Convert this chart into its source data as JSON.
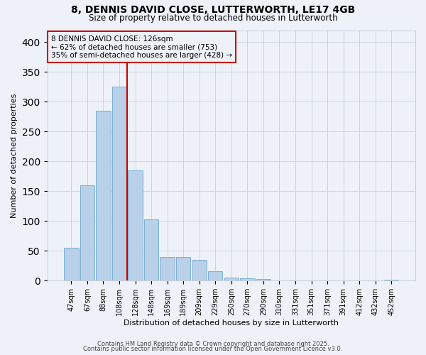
{
  "title1": "8, DENNIS DAVID CLOSE, LUTTERWORTH, LE17 4GB",
  "title2": "Size of property relative to detached houses in Lutterworth",
  "xlabel": "Distribution of detached houses by size in Lutterworth",
  "ylabel": "Number of detached properties",
  "bar_labels": [
    "47sqm",
    "67sqm",
    "88sqm",
    "108sqm",
    "128sqm",
    "148sqm",
    "169sqm",
    "189sqm",
    "209sqm",
    "229sqm",
    "250sqm",
    "270sqm",
    "290sqm",
    "310sqm",
    "331sqm",
    "351sqm",
    "371sqm",
    "391sqm",
    "412sqm",
    "432sqm",
    "452sqm"
  ],
  "bar_values": [
    55,
    160,
    285,
    325,
    185,
    103,
    40,
    40,
    35,
    16,
    5,
    4,
    3,
    0,
    0,
    0,
    0,
    0,
    0,
    0,
    2
  ],
  "bar_color": "#b8d0e8",
  "bar_edgecolor": "#7ab0d4",
  "ylim": [
    0,
    420
  ],
  "yticks": [
    0,
    50,
    100,
    150,
    200,
    250,
    300,
    350,
    400
  ],
  "vline_color": "#cc0000",
  "annotation_line1": "8 DENNIS DAVID CLOSE: 126sqm",
  "annotation_line2": "← 62% of detached houses are smaller (753)",
  "annotation_line3": "35% of semi-detached houses are larger (428) →",
  "annotation_color": "#cc0000",
  "background_color": "#eef2f8",
  "grid_color": "#c8d0dc",
  "footer1": "Contains HM Land Registry data © Crown copyright and database right 2025.",
  "footer2": "Contains public sector information licensed under the Open Government Licence v3.0."
}
